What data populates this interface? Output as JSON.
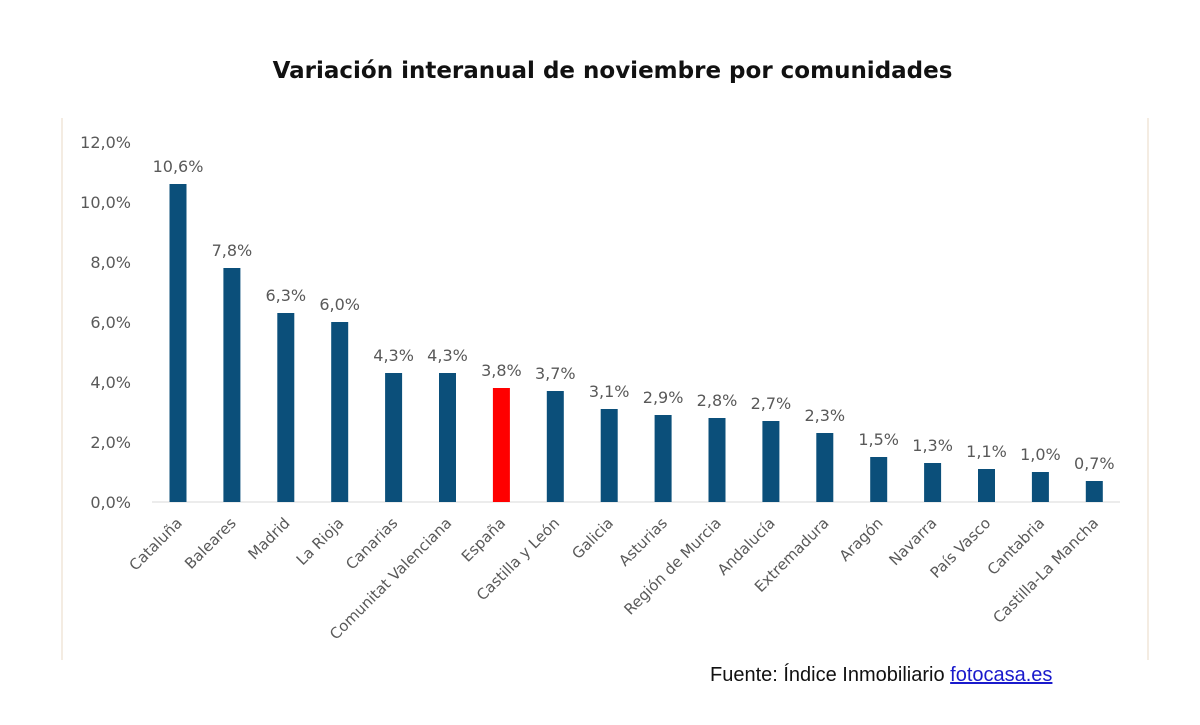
{
  "chart_data": {
    "type": "bar",
    "title": "Variación interanual de noviembre por comunidades",
    "xlabel": "",
    "ylabel": "",
    "ylim": [
      0,
      12
    ],
    "yticks": [
      "0,0%",
      "2,0%",
      "4,0%",
      "6,0%",
      "8,0%",
      "10,0%",
      "12,0%"
    ],
    "grid": false,
    "categories": [
      "Cataluña",
      "Baleares",
      "Madrid",
      "La Rioja",
      "Canarias",
      "Comunitat Valenciana",
      "España",
      "Castilla y León",
      "Galicia",
      "Asturias",
      "Región de Murcia",
      "Andalucía",
      "Extremadura",
      "Aragón",
      "Navarra",
      "País Vasco",
      "Cantabria",
      "Castilla-La Mancha"
    ],
    "values": [
      10.6,
      7.8,
      6.3,
      6.0,
      4.3,
      4.3,
      3.8,
      3.7,
      3.1,
      2.9,
      2.8,
      2.7,
      2.3,
      1.5,
      1.3,
      1.1,
      1.0,
      0.7
    ],
    "data_labels": [
      "10,6%",
      "7,8%",
      "6,3%",
      "6,0%",
      "4,3%",
      "4,3%",
      "3,8%",
      "3,7%",
      "3,1%",
      "2,9%",
      "2,8%",
      "2,7%",
      "2,3%",
      "1,5%",
      "1,3%",
      "1,1%",
      "1,0%",
      "0,7%"
    ],
    "highlight_category": "España",
    "colors": {
      "bar": "#0b4f7a",
      "highlight": "#ff0000",
      "axis": "#d9d9d9",
      "frame": "#f1e6d8",
      "text": "#595959"
    }
  },
  "source": {
    "prefix": "Fuente: Índice Inmobiliario",
    "link": "fotocasa.es"
  }
}
